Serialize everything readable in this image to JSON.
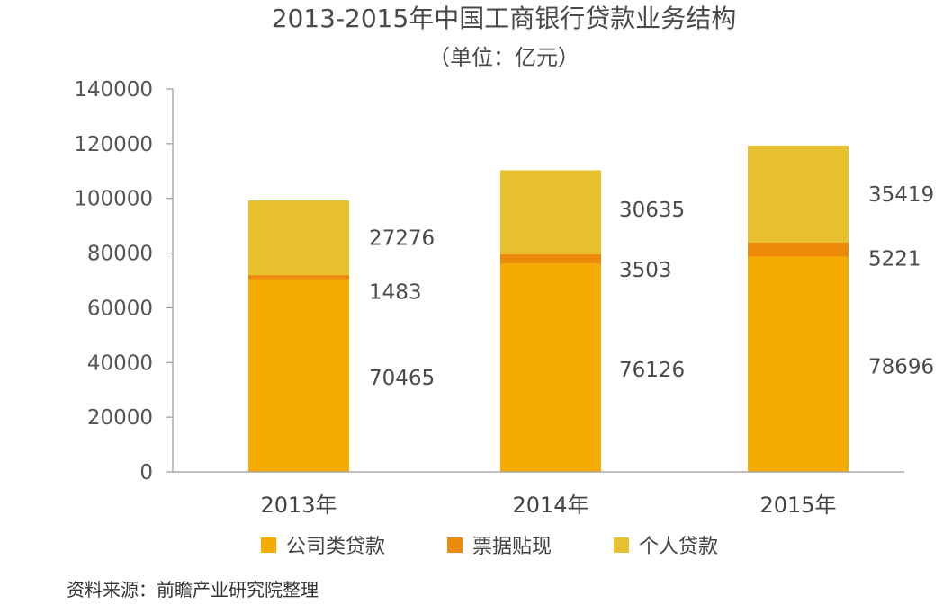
{
  "chart_data": {
    "type": "bar",
    "stacked": true,
    "title": "2013-2015年中国工商银行贷款业务结构",
    "subtitle": "（单位：亿元）",
    "categories": [
      "2013年",
      "2014年",
      "2015年"
    ],
    "series": [
      {
        "name": "公司类贷款",
        "values": [
          70465,
          76126,
          78696
        ],
        "color": "#F5AC00"
      },
      {
        "name": "票据贴现",
        "values": [
          1483,
          3503,
          5221
        ],
        "color": "#EE8A0A"
      },
      {
        "name": "个人贷款",
        "values": [
          27276,
          30635,
          35419
        ],
        "color": "#E8C22E"
      }
    ],
    "ylim": [
      0,
      140000
    ],
    "yticks": [
      0,
      20000,
      40000,
      60000,
      80000,
      100000,
      120000,
      140000
    ],
    "grid": false,
    "legend_position": "bottom"
  },
  "source_note": "资料来源：前瞻产业研究院整理"
}
